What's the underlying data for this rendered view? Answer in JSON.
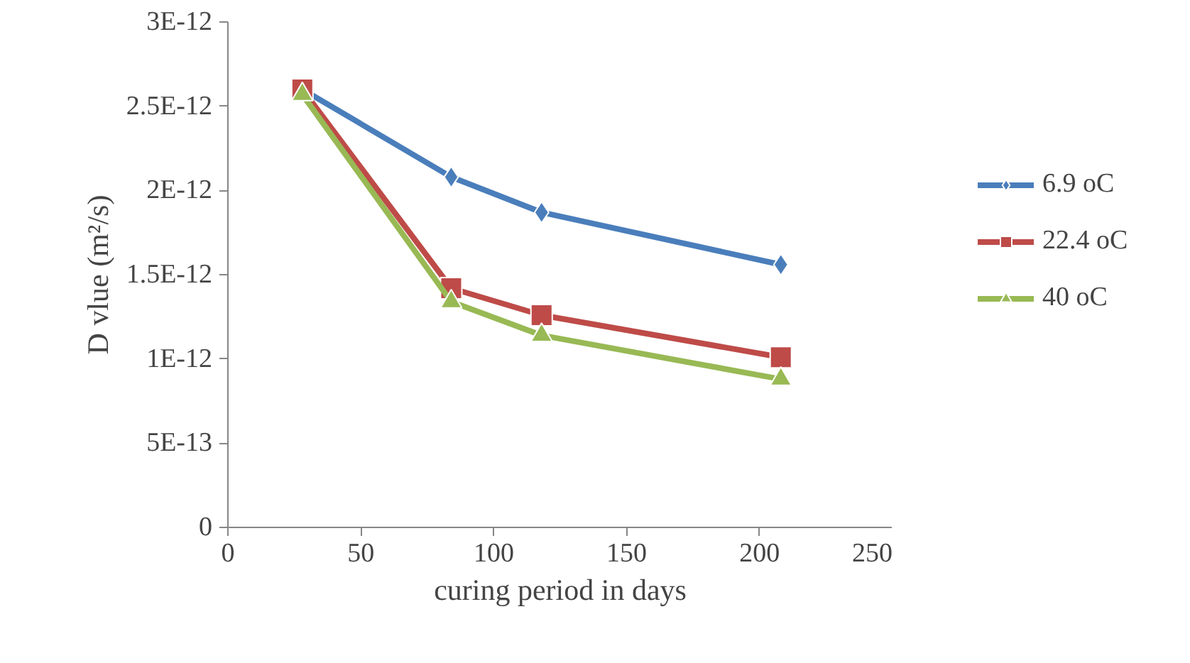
{
  "chart_data": {
    "type": "line",
    "xlabel": "curing period in days",
    "ylabel": "D vlue (m²/s)",
    "xlim": [
      0,
      250
    ],
    "xticks": [
      0,
      50,
      100,
      150,
      200,
      250
    ],
    "ylim": [
      0,
      3e-12
    ],
    "yticks": [
      {
        "value": 0,
        "label": "0"
      },
      {
        "value": 5e-13,
        "label": "5E-13"
      },
      {
        "value": 1e-12,
        "label": "1E-12"
      },
      {
        "value": 1.5e-12,
        "label": "1.5E-12"
      },
      {
        "value": 2e-12,
        "label": "2E-12"
      },
      {
        "value": 2.5e-12,
        "label": "2.5E-12"
      },
      {
        "value": 3e-12,
        "label": "3E-12"
      }
    ],
    "x": [
      28,
      84,
      118,
      208
    ],
    "series": [
      {
        "name": "6.9 oC",
        "color": "#4a7ebb",
        "marker": "diamond",
        "values": [
          2.6e-12,
          2.08e-12,
          1.87e-12,
          1.56e-12
        ]
      },
      {
        "name": "22.4 oC",
        "color": "#be4b48",
        "marker": "square",
        "values": [
          2.6e-12,
          1.42e-12,
          1.26e-12,
          1.01e-12
        ]
      },
      {
        "name": "40 oC",
        "color": "#98b954",
        "marker": "triangle",
        "values": [
          2.57e-12,
          1.34e-12,
          1.14e-12,
          8.8e-13
        ]
      }
    ],
    "grid": false,
    "legend": "right",
    "line_style": "solid"
  }
}
